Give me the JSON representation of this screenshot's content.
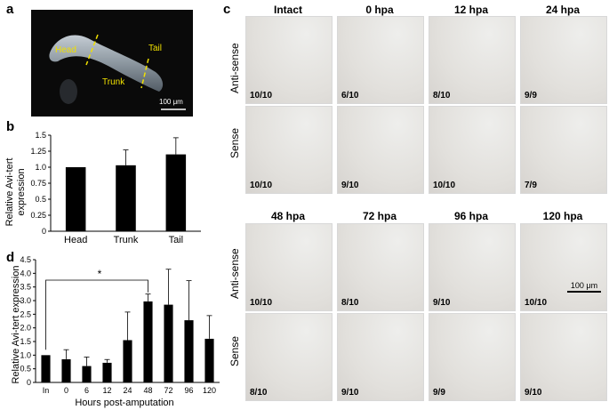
{
  "panel_a": {
    "letter": "a",
    "labels": {
      "head": "Head",
      "trunk": "Trunk",
      "tail": "Tail"
    },
    "scale_bar": "100 μm"
  },
  "panel_b": {
    "letter": "b",
    "chart_data": {
      "type": "bar",
      "categories": [
        "Head",
        "Trunk",
        "Tail"
      ],
      "values": [
        1.0,
        1.03,
        1.2
      ],
      "errors": [
        0,
        0.24,
        0.26
      ],
      "ylabel_line1": "Relative Avi-tert",
      "ylabel_line2": "expression",
      "ylim": [
        0,
        1.5
      ],
      "yticks": [
        "0",
        "0.25",
        "0.5",
        "0.75",
        "1.0",
        "1.25",
        "1.5"
      ]
    }
  },
  "panel_d": {
    "letter": "d",
    "chart_data": {
      "type": "bar",
      "categories": [
        "In",
        "0",
        "6",
        "12",
        "24",
        "48",
        "72",
        "96",
        "120"
      ],
      "values": [
        1.0,
        0.85,
        0.6,
        0.72,
        1.55,
        2.97,
        2.85,
        2.28,
        1.6
      ],
      "errors": [
        0,
        0.35,
        0.33,
        0.12,
        1.03,
        0.27,
        1.3,
        1.45,
        0.85
      ],
      "xlabel": "Hours post-amputation",
      "ylabel": "Relative Avi-tert expression",
      "ylim": [
        0,
        4.5
      ],
      "yticks": [
        "0",
        "0.5",
        "1.0",
        "1.5",
        "2.0",
        "2.5",
        "3.0",
        "3.5",
        "4.0",
        "4.5"
      ],
      "significance": "*"
    }
  },
  "panel_c": {
    "letter": "c",
    "top_columns": [
      "Intact",
      "0 hpa",
      "12 hpa",
      "24 hpa"
    ],
    "bottom_columns": [
      "48 hpa",
      "72 hpa",
      "96 hpa",
      "120 hpa"
    ],
    "rows": [
      "Anti-sense",
      "Sense"
    ],
    "counts": {
      "top_antisense": [
        "10/10",
        "6/10",
        "8/10",
        "9/9"
      ],
      "top_sense": [
        "10/10",
        "9/10",
        "10/10",
        "7/9"
      ],
      "bottom_antisense": [
        "10/10",
        "8/10",
        "9/10",
        "10/10"
      ],
      "bottom_sense": [
        "8/10",
        "9/10",
        "9/9",
        "9/10"
      ]
    },
    "scale_bar": "100 μm"
  }
}
